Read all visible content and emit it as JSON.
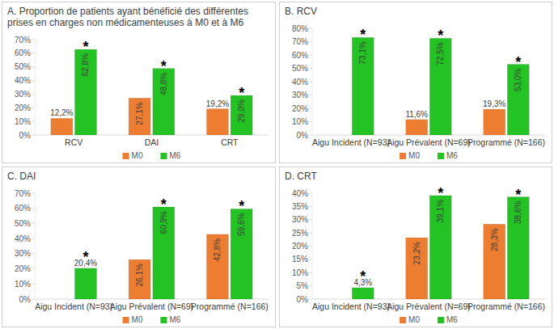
{
  "chart_data": [
    {
      "type": "bar",
      "title": "A. Proportion de patients ayant bénéficié des différentes prises en charges non médicamenteuses à M0 et à M6",
      "categories": [
        "RCV",
        "DAI",
        "CRT"
      ],
      "series": [
        {
          "name": "M0",
          "color": "#ed7d31",
          "values": [
            12.2,
            27.1,
            19.2
          ],
          "value_labels": [
            "12,2%",
            "27,1%",
            "19,2%"
          ]
        },
        {
          "name": "M6",
          "color": "#22c322",
          "values": [
            62.8,
            48.8,
            29.0
          ],
          "value_labels": [
            "62,8%",
            "48,8%",
            "29,0%"
          ],
          "annotations": [
            "*",
            "*",
            "*"
          ]
        }
      ],
      "ylim": [
        0,
        70
      ],
      "yticks": [
        {
          "value": 0,
          "label": "0%"
        },
        {
          "value": 10,
          "label": "10%"
        },
        {
          "value": 20,
          "label": "20%"
        },
        {
          "value": 30,
          "label": "30%"
        },
        {
          "value": 40,
          "label": "40%"
        },
        {
          "value": 50,
          "label": "50%"
        },
        {
          "value": 60,
          "label": "60%"
        },
        {
          "value": 70,
          "label": "70%"
        }
      ],
      "grid": false,
      "legend": "bottom",
      "data_labels": true
    },
    {
      "type": "bar",
      "title": "B. RCV",
      "categories": [
        "Aigu Incident (N=93)",
        "Aigu Prévalent (N=69)",
        "Programmé (N=166)"
      ],
      "series": [
        {
          "name": "M0",
          "color": "#ed7d31",
          "values": [
            null,
            11.6,
            19.3
          ],
          "value_labels": [
            null,
            "11,6%",
            "19,3%"
          ]
        },
        {
          "name": "M6",
          "color": "#22c322",
          "values": [
            73.1,
            72.5,
            53.0
          ],
          "value_labels": [
            "73,1%",
            "72,5%",
            "53,0%"
          ],
          "annotations": [
            "*",
            "*",
            "*"
          ]
        }
      ],
      "ylim": [
        0,
        80
      ],
      "yticks": [
        {
          "value": 0,
          "label": "0%"
        },
        {
          "value": 10,
          "label": "10%"
        },
        {
          "value": 20,
          "label": "20%"
        },
        {
          "value": 30,
          "label": "30%"
        },
        {
          "value": 40,
          "label": "40%"
        },
        {
          "value": 50,
          "label": "50%"
        },
        {
          "value": 60,
          "label": "60%"
        },
        {
          "value": 70,
          "label": "70%"
        },
        {
          "value": 80,
          "label": "80%"
        }
      ],
      "grid": false,
      "legend": "bottom",
      "data_labels": true
    },
    {
      "type": "bar",
      "title": "C. DAI",
      "categories": [
        "Aigu Incident (N=93)",
        "Aigu Prévalent (N=69)",
        "Programmé (N=166)"
      ],
      "series": [
        {
          "name": "M0",
          "color": "#ed7d31",
          "values": [
            null,
            26.1,
            42.8
          ],
          "value_labels": [
            null,
            "26,1%",
            "42,8%"
          ]
        },
        {
          "name": "M6",
          "color": "#22c322",
          "values": [
            20.4,
            60.9,
            59.6
          ],
          "value_labels": [
            "20,4%",
            "60,9%",
            "59,6%"
          ],
          "annotations": [
            "*",
            "*",
            "*"
          ]
        }
      ],
      "ylim": [
        0,
        70
      ],
      "yticks": [
        {
          "value": 0,
          "label": "0%"
        },
        {
          "value": 10,
          "label": "10%"
        },
        {
          "value": 20,
          "label": "20%"
        },
        {
          "value": 30,
          "label": "30%"
        },
        {
          "value": 40,
          "label": "40%"
        },
        {
          "value": 50,
          "label": "50%"
        },
        {
          "value": 60,
          "label": "60%"
        },
        {
          "value": 70,
          "label": "70%"
        }
      ],
      "grid": false,
      "legend": "bottom",
      "data_labels": true
    },
    {
      "type": "bar",
      "title": "D. CRT",
      "categories": [
        "Aigu Incident (N=93)",
        "Aigu Prévalent (N=69)",
        "Programmé (N=166)"
      ],
      "series": [
        {
          "name": "M0",
          "color": "#ed7d31",
          "values": [
            null,
            23.2,
            28.3
          ],
          "value_labels": [
            null,
            "23,2%",
            "28,3%"
          ]
        },
        {
          "name": "M6",
          "color": "#22c322",
          "values": [
            4.3,
            39.1,
            38.6
          ],
          "value_labels": [
            "4,3%",
            "39,1%",
            "38,6%"
          ],
          "annotations": [
            "*",
            "*",
            "*"
          ]
        }
      ],
      "ylim": [
        0,
        40
      ],
      "yticks": [
        {
          "value": 0,
          "label": "0%"
        },
        {
          "value": 5,
          "label": "5%"
        },
        {
          "value": 10,
          "label": "10%"
        },
        {
          "value": 15,
          "label": "15%"
        },
        {
          "value": 20,
          "label": "20%"
        },
        {
          "value": 25,
          "label": "25%"
        },
        {
          "value": 30,
          "label": "30%"
        },
        {
          "value": 35,
          "label": "35%"
        },
        {
          "value": 40,
          "label": "40%"
        }
      ],
      "grid": false,
      "legend": "bottom",
      "data_labels": true
    }
  ]
}
